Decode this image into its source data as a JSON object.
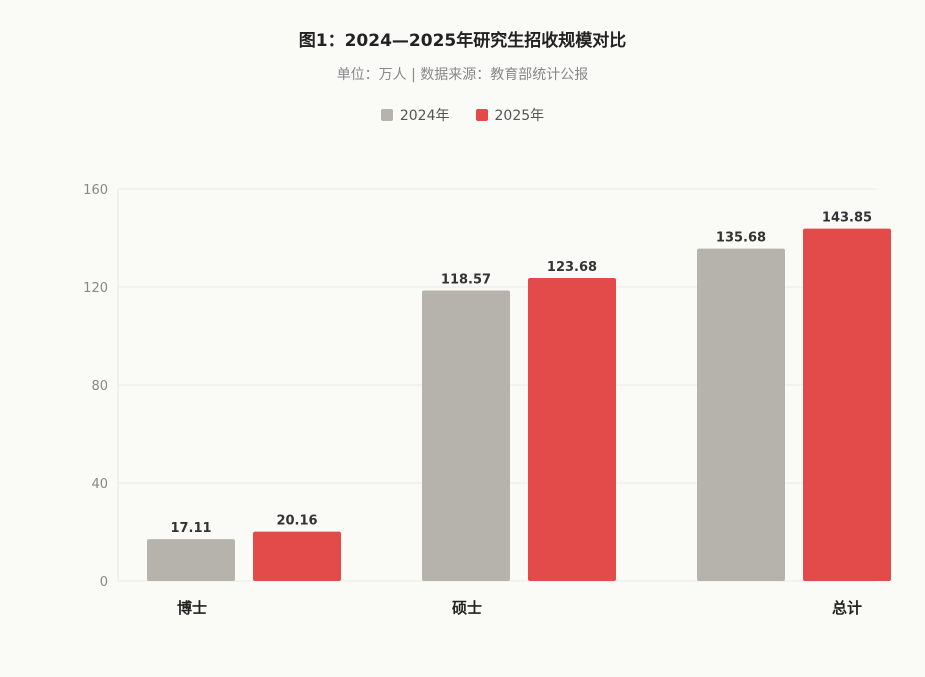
{
  "chart_data": {
    "type": "bar",
    "title": "图1：2024—2025年研究生招收规模对比",
    "subtitle": "单位：万人 | 数据来源：教育部统计公报",
    "categories": [
      "博士",
      "硕士",
      "总计"
    ],
    "series": [
      {
        "name": "2024年",
        "values": [
          17.11,
          118.57,
          135.68
        ],
        "color": "#b5b3ab"
      },
      {
        "name": "2025年",
        "values": [
          20.16,
          123.68,
          143.85
        ],
        "color": "#e34b4b"
      }
    ],
    "yticks": [
      0,
      40,
      80,
      120,
      160
    ],
    "ylim": [
      0,
      160
    ],
    "grid": true,
    "legend_position": "top-center"
  }
}
